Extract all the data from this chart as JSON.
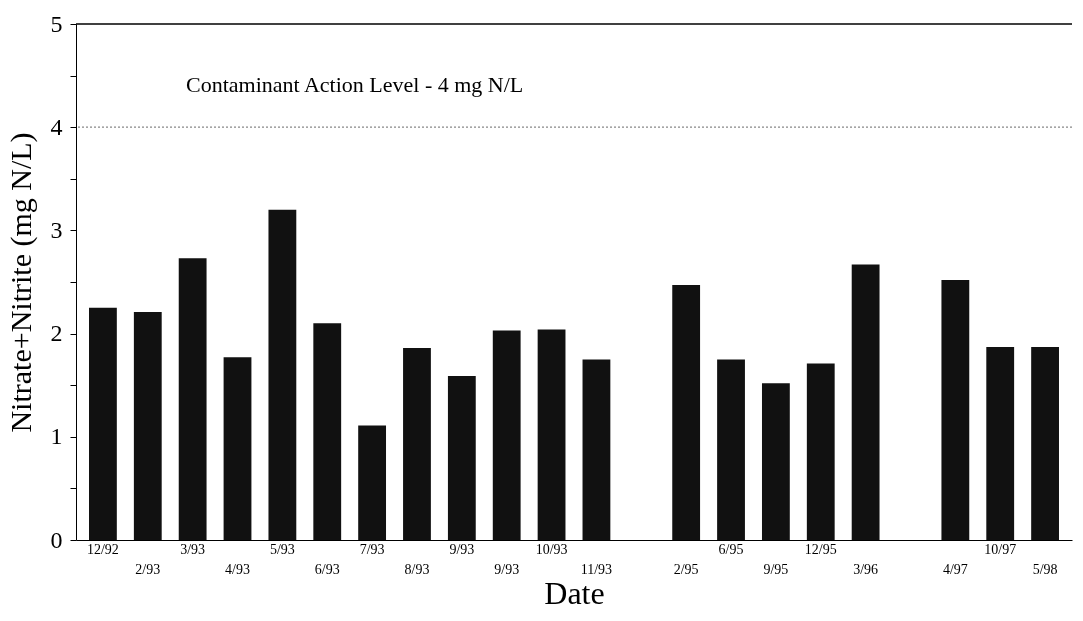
{
  "chart_data": {
    "type": "bar",
    "xlabel": "Date",
    "ylabel": "Nitrate+Nitrite (mg N/L)",
    "categories": [
      "12/92",
      "2/93",
      "3/93",
      "4/93",
      "5/93",
      "6/93",
      "7/93",
      "8/93",
      "9/93",
      "9/93",
      "10/93",
      "11/93",
      null,
      "2/95",
      "6/95",
      "9/95",
      "12/95",
      "3/96",
      null,
      "4/97",
      "10/97",
      "5/98"
    ],
    "values": [
      2.25,
      2.21,
      2.73,
      1.77,
      3.2,
      2.1,
      1.11,
      1.86,
      1.59,
      2.03,
      2.04,
      1.75,
      null,
      2.47,
      1.75,
      1.52,
      1.71,
      2.67,
      null,
      2.52,
      1.87,
      1.87
    ],
    "color": "#111111",
    "ylim": [
      0,
      5
    ],
    "yticks": [
      0,
      {
        "value": 0.5,
        "label": null
      },
      1,
      {
        "value": 1.5,
        "label": null
      },
      2,
      {
        "value": 2.5,
        "label": null
      },
      3,
      {
        "value": 3.5,
        "label": null
      },
      4,
      {
        "value": 4.5,
        "label": null
      },
      5
    ],
    "ref_lines": [
      {
        "axis": "y",
        "value": 4,
        "label": "Contaminant Action Level - 4 mg N/L",
        "color": "#888888",
        "line_style": "dotted"
      }
    ],
    "grid": false
  }
}
